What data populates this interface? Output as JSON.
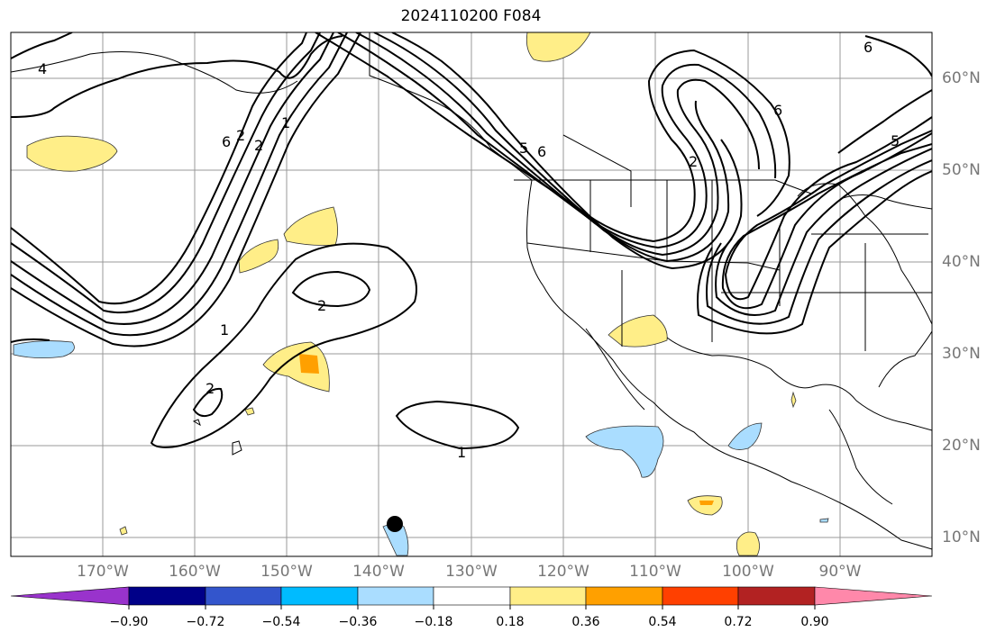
{
  "title": "2024110200 F084",
  "lat_labels": [
    "60°N",
    "50°N",
    "40°N",
    "30°N",
    "20°N",
    "10°N"
  ],
  "lon_labels": [
    "170°W",
    "160°W",
    "150°W",
    "140°W",
    "130°W",
    "120°W",
    "110°W",
    "100°W",
    "90°W"
  ],
  "contour_labels": [
    "4",
    "1",
    "2",
    "1",
    "2",
    "1",
    "2",
    "2",
    "6",
    "6",
    "5",
    "6",
    "2",
    "5",
    "6"
  ],
  "colorbar": {
    "colors": [
      "#9933cc",
      "#000088",
      "#3355cc",
      "#00bbff",
      "#aaddff",
      "#ffffff",
      "#ffee88",
      "#ffa000",
      "#ff4000",
      "#b22222",
      "#ff88aa"
    ],
    "tick_labels": [
      "−0.90",
      "−0.72",
      "−0.54",
      "−0.36",
      "−0.18",
      "0.18",
      "0.36",
      "0.54",
      "0.72",
      "0.90"
    ]
  }
}
